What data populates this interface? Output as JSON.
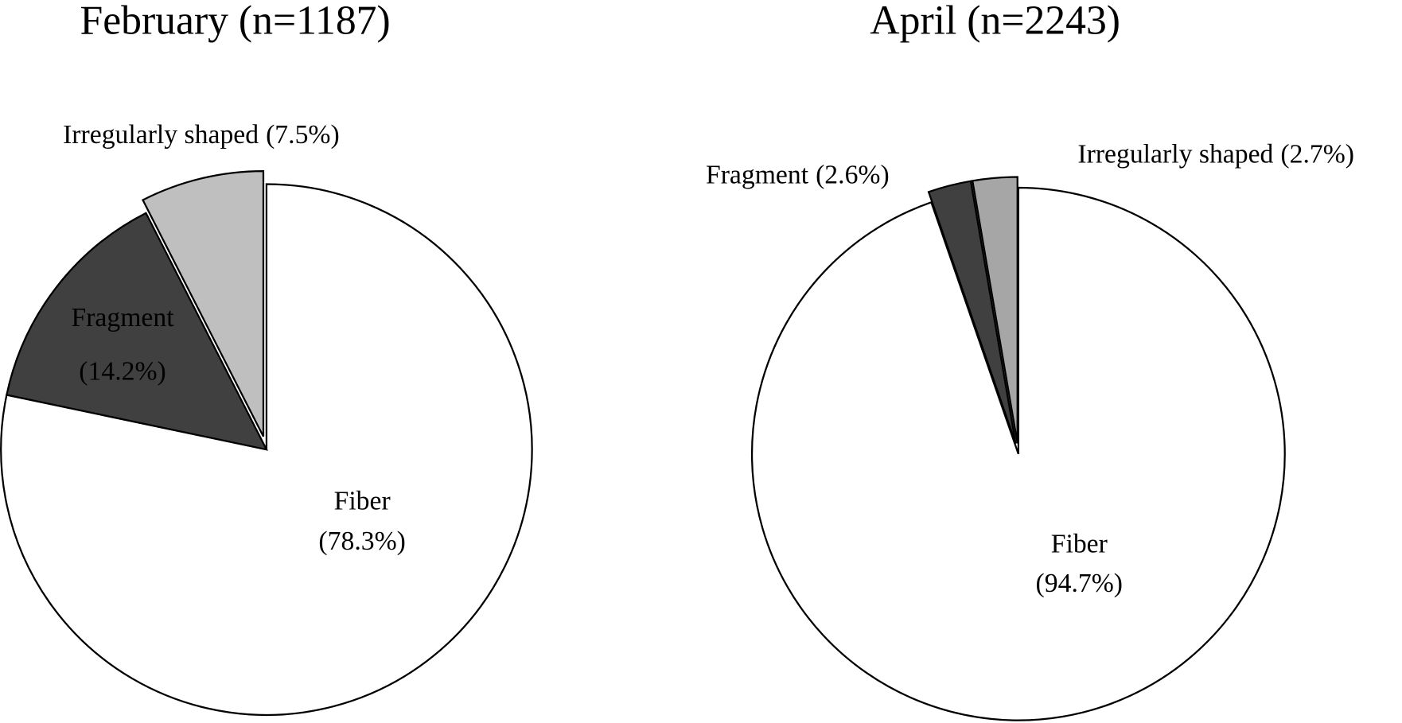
{
  "chart_data": [
    {
      "type": "pie",
      "title": "February (n=1187)",
      "categories": [
        "Fiber",
        "Fragment",
        "Irregularly shaped"
      ],
      "values": [
        78.3,
        14.2,
        7.5
      ],
      "value_labels": [
        "(78.3%)",
        "(14.2%)",
        "(7.5%)"
      ],
      "colors": [
        "#ffffff",
        "#404040",
        "#bfbfbf"
      ]
    },
    {
      "type": "pie",
      "title": "April (n=2243)",
      "categories": [
        "Fiber",
        "Fragment",
        "Irregularly shaped"
      ],
      "values": [
        94.7,
        2.6,
        2.7
      ],
      "value_labels": [
        "(94.7%)",
        "(2.6%)",
        "(2.7%)"
      ],
      "colors": [
        "#ffffff",
        "#404040",
        "#a6a6a6"
      ]
    }
  ]
}
